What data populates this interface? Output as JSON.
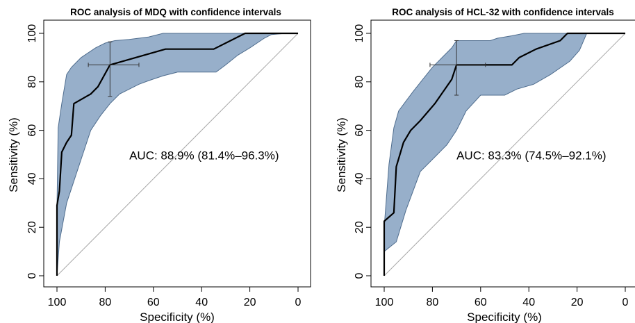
{
  "colors": {
    "band_fill": "#97afca",
    "band_stroke": "#4f6d8e",
    "curve": "#000000",
    "diagonal": "#a8a8a8",
    "frame": "#000000"
  },
  "chart_data": [
    {
      "type": "line",
      "title": "ROC analysis of MDQ with confidence intervals",
      "xlabel": "Specificity (%)",
      "ylabel": "Sensitivity (%)",
      "xlim": [
        100,
        0
      ],
      "ylim": [
        0,
        100
      ],
      "x_reversed": true,
      "grid": false,
      "xticks": [
        "100",
        "80",
        "60",
        "40",
        "20",
        "0"
      ],
      "yticks": [
        "0",
        "20",
        "40",
        "60",
        "80",
        "100"
      ],
      "annotation": "AUC: 88.9% (81.4%–96.3%)",
      "annotation_pos": [
        70,
        48
      ],
      "roc": {
        "x": [
          100,
          100,
          100,
          99,
          98,
          96,
          94,
          93,
          86,
          83,
          78,
          55,
          35,
          22,
          21,
          18,
          0
        ],
        "y": [
          0,
          14,
          29,
          35,
          51,
          55,
          58,
          71,
          75,
          78,
          87,
          93.5,
          93.5,
          100,
          100,
          100,
          100
        ]
      },
      "ci_upper": {
        "x": [
          100,
          100,
          99.5,
          98,
          96,
          94,
          92,
          90,
          87,
          84,
          80,
          76,
          70,
          62,
          56,
          50,
          0
        ],
        "y": [
          0,
          28,
          61,
          71,
          83,
          86,
          88,
          90,
          92,
          94,
          96,
          97,
          97.5,
          98.5,
          100,
          100,
          100
        ]
      },
      "ci_lower": {
        "x": [
          100,
          100,
          99,
          96,
          90,
          86,
          82,
          78,
          74,
          70,
          66,
          62,
          56,
          50,
          34,
          30,
          25,
          20,
          14,
          11,
          5,
          0
        ],
        "y": [
          0,
          0,
          14,
          30,
          48,
          60,
          66,
          71,
          75,
          77,
          79,
          80.5,
          82.5,
          84,
          84,
          87,
          91,
          94,
          98,
          99.5,
          100,
          100
        ]
      },
      "ci_cross": {
        "x": 78,
        "y": 87,
        "x_low": 66,
        "x_high": 87,
        "y_low": 74,
        "y_high": 96.5
      }
    },
    {
      "type": "line",
      "title": "ROC analysis of HCL-32 with confidence intervals",
      "xlabel": "Specificity (%)",
      "ylabel": "Sensitivity (%)",
      "xlim": [
        100,
        0
      ],
      "ylim": [
        0,
        100
      ],
      "x_reversed": true,
      "grid": false,
      "xticks": [
        "100",
        "80",
        "60",
        "40",
        "20",
        "0"
      ],
      "yticks": [
        "0",
        "20",
        "40",
        "60",
        "80",
        "100"
      ],
      "annotation": "AUC: 83.3% (74.5%–92.1%)",
      "annotation_pos": [
        70,
        48
      ],
      "roc": {
        "x": [
          100,
          100,
          100,
          96,
          95,
          92,
          89,
          85,
          79,
          72,
          70,
          70,
          47,
          44,
          37,
          27,
          24,
          0
        ],
        "y": [
          0,
          10,
          22.5,
          26,
          45,
          55,
          60,
          64,
          71,
          81,
          87,
          87,
          87,
          90,
          93.5,
          97,
          100,
          100
        ]
      },
      "ci_upper": {
        "x": [
          100,
          100,
          98,
          96,
          94,
          91,
          88,
          84,
          80,
          76,
          72,
          70,
          62,
          56,
          53,
          47,
          42,
          0
        ],
        "y": [
          0,
          20,
          46,
          61,
          68,
          72,
          76,
          81,
          86,
          90,
          94,
          97,
          97,
          97,
          98,
          99,
          100,
          100
        ]
      },
      "ci_lower": {
        "x": [
          100,
          100,
          95,
          91,
          85,
          79,
          74,
          70,
          66,
          60,
          53,
          50,
          45,
          38,
          31,
          23,
          19,
          16,
          13,
          0
        ],
        "y": [
          0,
          10,
          14,
          27,
          43,
          49,
          54,
          60,
          68,
          74.5,
          74.5,
          74.5,
          77,
          79,
          83,
          88.5,
          93,
          100,
          100,
          100
        ]
      },
      "ci_cross": {
        "x": 70,
        "y": 87,
        "x_low": 58,
        "x_high": 81,
        "y_low": 74.5,
        "y_high": 97
      }
    }
  ]
}
